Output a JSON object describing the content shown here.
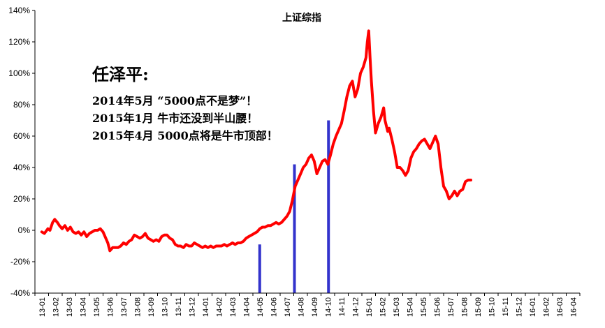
{
  "chart_data": {
    "type": "line",
    "title": "上证综指",
    "ylim": [
      -40,
      140
    ],
    "yticks": [
      "-40%",
      "-20%",
      "0%",
      "20%",
      "40%",
      "60%",
      "80%",
      "100%",
      "120%",
      "140%"
    ],
    "ytick_values": [
      -40,
      -20,
      0,
      20,
      40,
      60,
      80,
      100,
      120,
      140
    ],
    "xtick_labels": [
      "13-01",
      "13-02",
      "13-03",
      "13-04",
      "13-05",
      "13-06",
      "13-07",
      "13-08",
      "13-09",
      "13-10",
      "13-11",
      "13-12",
      "14-01",
      "14-02",
      "14-03",
      "14-04",
      "14-05",
      "14-06",
      "14-07",
      "14-08",
      "14-09",
      "14-10",
      "14-11",
      "14-12",
      "15-01",
      "15-02",
      "15-03",
      "15-04",
      "15-05",
      "15-06",
      "15-07",
      "15-08",
      "15-09",
      "15-10",
      "15-11",
      "15-12",
      "16-01",
      "16-02",
      "16-03",
      "16-04"
    ],
    "grid": false,
    "line_color": "#ff0000",
    "marker_color": "#3333cc",
    "series": [
      {
        "values": [
          [
            0,
            -1
          ],
          [
            0.2,
            -2
          ],
          [
            0.45,
            1
          ],
          [
            0.6,
            0
          ],
          [
            0.8,
            5
          ],
          [
            0.95,
            7
          ],
          [
            1.15,
            5
          ],
          [
            1.3,
            3
          ],
          [
            1.5,
            1
          ],
          [
            1.7,
            3
          ],
          [
            1.9,
            0
          ],
          [
            2.1,
            2
          ],
          [
            2.3,
            -1
          ],
          [
            2.5,
            -2
          ],
          [
            2.7,
            -1
          ],
          [
            2.9,
            -3
          ],
          [
            3.1,
            -1
          ],
          [
            3.3,
            -4
          ],
          [
            3.5,
            -2
          ],
          [
            3.7,
            -1
          ],
          [
            3.9,
            0
          ],
          [
            4.1,
            0
          ],
          [
            4.3,
            1
          ],
          [
            4.5,
            -1
          ],
          [
            4.7,
            -5
          ],
          [
            4.85,
            -8
          ],
          [
            5.0,
            -13
          ],
          [
            5.2,
            -11
          ],
          [
            5.4,
            -11
          ],
          [
            5.6,
            -11
          ],
          [
            5.8,
            -10
          ],
          [
            6.0,
            -8
          ],
          [
            6.2,
            -9
          ],
          [
            6.4,
            -7
          ],
          [
            6.6,
            -6
          ],
          [
            6.8,
            -3
          ],
          [
            7.0,
            -4
          ],
          [
            7.2,
            -5
          ],
          [
            7.4,
            -4
          ],
          [
            7.6,
            -2
          ],
          [
            7.8,
            -5
          ],
          [
            8.0,
            -6
          ],
          [
            8.2,
            -7
          ],
          [
            8.4,
            -6
          ],
          [
            8.6,
            -7
          ],
          [
            8.8,
            -4
          ],
          [
            9.0,
            -3
          ],
          [
            9.2,
            -3
          ],
          [
            9.4,
            -5
          ],
          [
            9.6,
            -6
          ],
          [
            9.8,
            -9
          ],
          [
            10.0,
            -10
          ],
          [
            10.2,
            -10
          ],
          [
            10.4,
            -11
          ],
          [
            10.6,
            -9
          ],
          [
            10.8,
            -10
          ],
          [
            11.0,
            -10
          ],
          [
            11.2,
            -8
          ],
          [
            11.4,
            -9
          ],
          [
            11.6,
            -10
          ],
          [
            11.8,
            -11
          ],
          [
            12.0,
            -10
          ],
          [
            12.2,
            -11
          ],
          [
            12.4,
            -10
          ],
          [
            12.6,
            -11
          ],
          [
            12.8,
            -10
          ],
          [
            13.0,
            -10
          ],
          [
            13.2,
            -10
          ],
          [
            13.4,
            -9
          ],
          [
            13.6,
            -10
          ],
          [
            13.8,
            -9
          ],
          [
            14.0,
            -8
          ],
          [
            14.2,
            -9
          ],
          [
            14.4,
            -8
          ],
          [
            14.6,
            -8
          ],
          [
            14.8,
            -7
          ],
          [
            15.0,
            -5
          ],
          [
            15.2,
            -4
          ],
          [
            15.4,
            -3
          ],
          [
            15.6,
            -2
          ],
          [
            15.8,
            -1
          ],
          [
            16.0,
            1
          ],
          [
            16.2,
            2
          ],
          [
            16.4,
            2
          ],
          [
            16.6,
            3
          ],
          [
            16.8,
            3
          ],
          [
            17.0,
            4
          ],
          [
            17.2,
            5
          ],
          [
            17.4,
            4
          ],
          [
            17.6,
            5
          ],
          [
            17.8,
            7
          ],
          [
            18.0,
            9
          ],
          [
            18.2,
            12
          ],
          [
            18.4,
            19
          ],
          [
            18.6,
            28
          ],
          [
            18.8,
            32
          ],
          [
            19.0,
            36
          ],
          [
            19.2,
            40
          ],
          [
            19.4,
            42
          ],
          [
            19.6,
            46
          ],
          [
            19.8,
            48
          ],
          [
            20.0,
            44
          ],
          [
            20.2,
            36
          ],
          [
            20.4,
            40
          ],
          [
            20.6,
            44
          ],
          [
            20.8,
            45
          ],
          [
            21.0,
            42
          ],
          [
            21.2,
            48
          ],
          [
            21.4,
            55
          ],
          [
            21.6,
            60
          ],
          [
            21.8,
            64
          ],
          [
            22.0,
            68
          ],
          [
            22.2,
            76
          ],
          [
            22.4,
            85
          ],
          [
            22.6,
            92
          ],
          [
            22.8,
            95
          ],
          [
            23.0,
            85
          ],
          [
            23.2,
            90
          ],
          [
            23.4,
            100
          ],
          [
            23.6,
            104
          ],
          [
            23.8,
            110
          ],
          [
            23.9,
            120
          ],
          [
            24.0,
            127
          ],
          [
            24.1,
            110
          ],
          [
            24.2,
            95
          ],
          [
            24.35,
            76
          ],
          [
            24.5,
            62
          ],
          [
            24.7,
            68
          ],
          [
            24.9,
            72
          ],
          [
            25.1,
            78
          ],
          [
            25.2,
            70
          ],
          [
            25.4,
            63
          ],
          [
            25.5,
            65
          ],
          [
            25.7,
            58
          ],
          [
            25.9,
            50
          ],
          [
            26.1,
            40
          ],
          [
            26.3,
            40
          ],
          [
            26.5,
            38
          ],
          [
            26.7,
            35
          ],
          [
            26.9,
            38
          ],
          [
            27.1,
            46
          ],
          [
            27.3,
            50
          ],
          [
            27.5,
            52
          ],
          [
            27.7,
            55
          ],
          [
            27.9,
            57
          ],
          [
            28.1,
            58
          ],
          [
            28.3,
            55
          ],
          [
            28.5,
            52
          ],
          [
            28.7,
            56
          ],
          [
            28.9,
            60
          ],
          [
            29.1,
            55
          ],
          [
            29.3,
            40
          ],
          [
            29.5,
            28
          ],
          [
            29.7,
            25
          ],
          [
            29.9,
            20
          ],
          [
            30.1,
            22
          ],
          [
            30.3,
            25
          ],
          [
            30.5,
            22
          ],
          [
            30.7,
            25
          ],
          [
            30.9,
            26
          ],
          [
            31.1,
            31
          ],
          [
            31.3,
            32
          ],
          [
            31.5,
            32
          ]
        ]
      }
    ],
    "markers": [
      {
        "x": 16,
        "y": -9
      },
      {
        "x": 18.55,
        "y": 42
      },
      {
        "x": 21.05,
        "y": 70
      }
    ]
  },
  "annotation": {
    "heading": "任泽平:",
    "lines": [
      "2014年5月 “5000点不是梦”！",
      "2015年1月    牛市还没到半山腰！",
      "2015年4月    5000点将是牛市顶部！"
    ]
  }
}
